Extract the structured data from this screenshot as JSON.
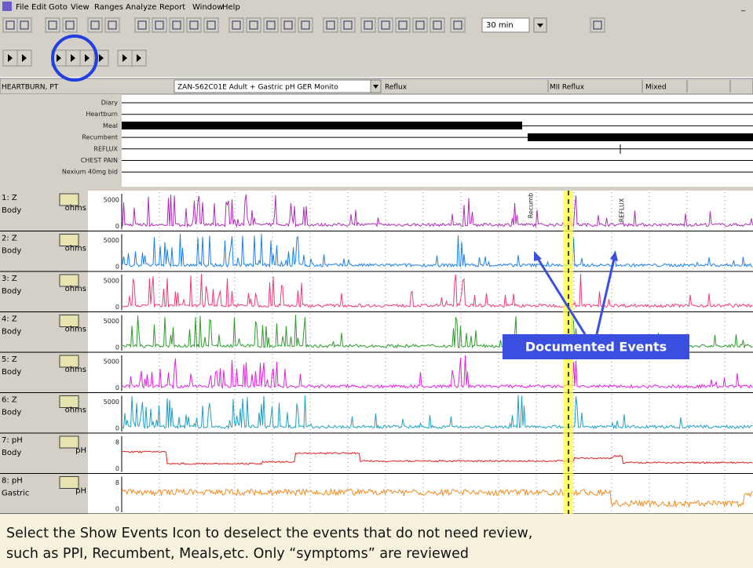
{
  "menu": [
    "File",
    "Edit",
    "Goto",
    "View",
    "Ranges",
    "Analyze",
    "Report",
    "Window",
    "Help"
  ],
  "toolbar": {
    "interval": "30 min"
  },
  "header": {
    "patient": "HEARTBURN, PT",
    "study": "ZAN-S62C01E  Adult + Gastric pH GER Monito",
    "fields": [
      "Reflux",
      "MII Reflux",
      "Mixed"
    ]
  },
  "event_rows": [
    "Diary",
    "Heartburn",
    "Meal",
    "Recumbent",
    "REFLUX",
    "CHEST PAIN",
    "Nexium 40mg bid"
  ],
  "channels": [
    {
      "name": "1: Z",
      "site": "Body",
      "unit": "ohms",
      "top": "5000",
      "bottom": "0"
    },
    {
      "name": "2: Z",
      "site": "Body",
      "unit": "ohms",
      "top": "5000",
      "bottom": "0"
    },
    {
      "name": "3: Z",
      "site": "Body",
      "unit": "ohms",
      "top": "5000",
      "bottom": "0"
    },
    {
      "name": "4: Z",
      "site": "Body",
      "unit": "ohms",
      "top": "5000",
      "bottom": "0"
    },
    {
      "name": "5: Z",
      "site": "Body",
      "unit": "ohms",
      "top": "5000",
      "bottom": "0"
    },
    {
      "name": "6: Z",
      "site": "Body",
      "unit": "ohms",
      "top": "5000",
      "bottom": "0"
    },
    {
      "name": "7: pH",
      "site": "Body",
      "unit": "pH",
      "top": "8",
      "bottom": "0"
    },
    {
      "name": "8: pH",
      "site": "Gastric",
      "unit": "pH",
      "top": "8",
      "bottom": "0"
    }
  ],
  "markers": [
    "Recumb",
    "REFLUX"
  ],
  "callout": "Documented Events",
  "caption": [
    "Select the Show Events Icon to deselect the events that do not need review,",
    "such as PPI, Recumbent, Meals,etc.  Only “symptoms” are reviewed"
  ]
}
